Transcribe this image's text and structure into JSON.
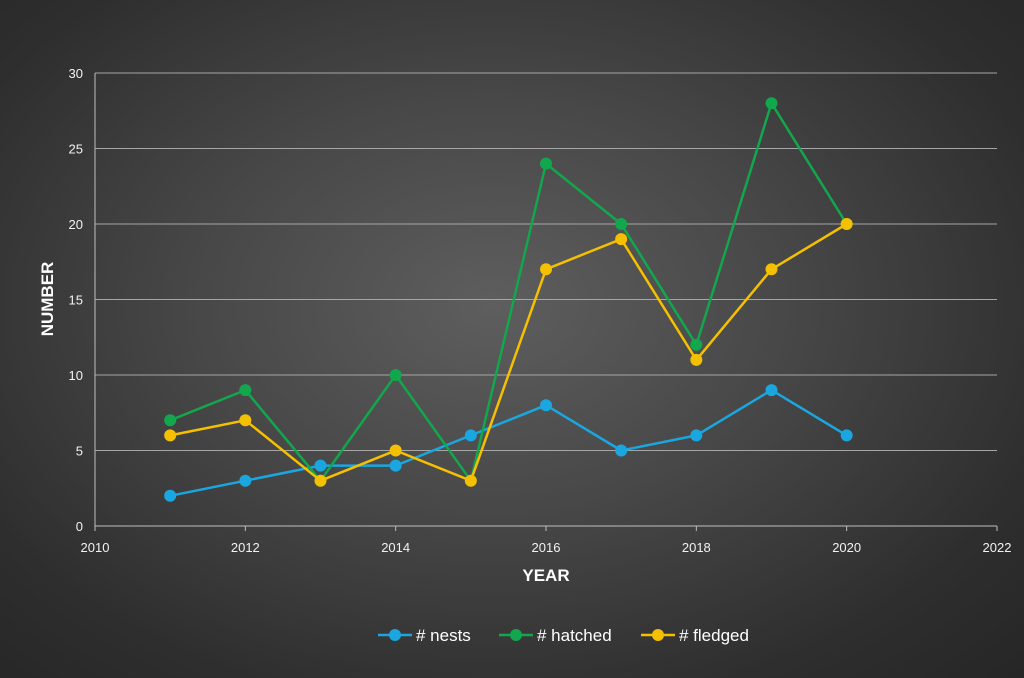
{
  "chart_data": {
    "type": "line",
    "title": "",
    "xlabel": "YEAR",
    "ylabel": "NUMBER",
    "xlim": [
      2010,
      2022
    ],
    "ylim": [
      0,
      30
    ],
    "x_ticks": [
      2010,
      2012,
      2014,
      2016,
      2018,
      2020,
      2022
    ],
    "y_ticks": [
      0,
      5,
      10,
      15,
      20,
      25,
      30
    ],
    "grid": true,
    "legend_position": "bottom",
    "x": [
      2011,
      2012,
      2013,
      2014,
      2015,
      2016,
      2017,
      2018,
      2019,
      2020
    ],
    "series": [
      {
        "name": "# nests",
        "color": "#1aa7e0",
        "values": [
          2,
          3,
          4,
          4,
          6,
          8,
          5,
          6,
          9,
          6
        ]
      },
      {
        "name": "# hatched",
        "color": "#12a64d",
        "values": [
          7,
          9,
          3,
          10,
          3,
          24,
          20,
          12,
          28,
          20
        ]
      },
      {
        "name": "# fledged",
        "color": "#f5c000",
        "values": [
          6,
          7,
          3,
          5,
          3,
          17,
          19,
          11,
          17,
          20
        ]
      }
    ]
  }
}
